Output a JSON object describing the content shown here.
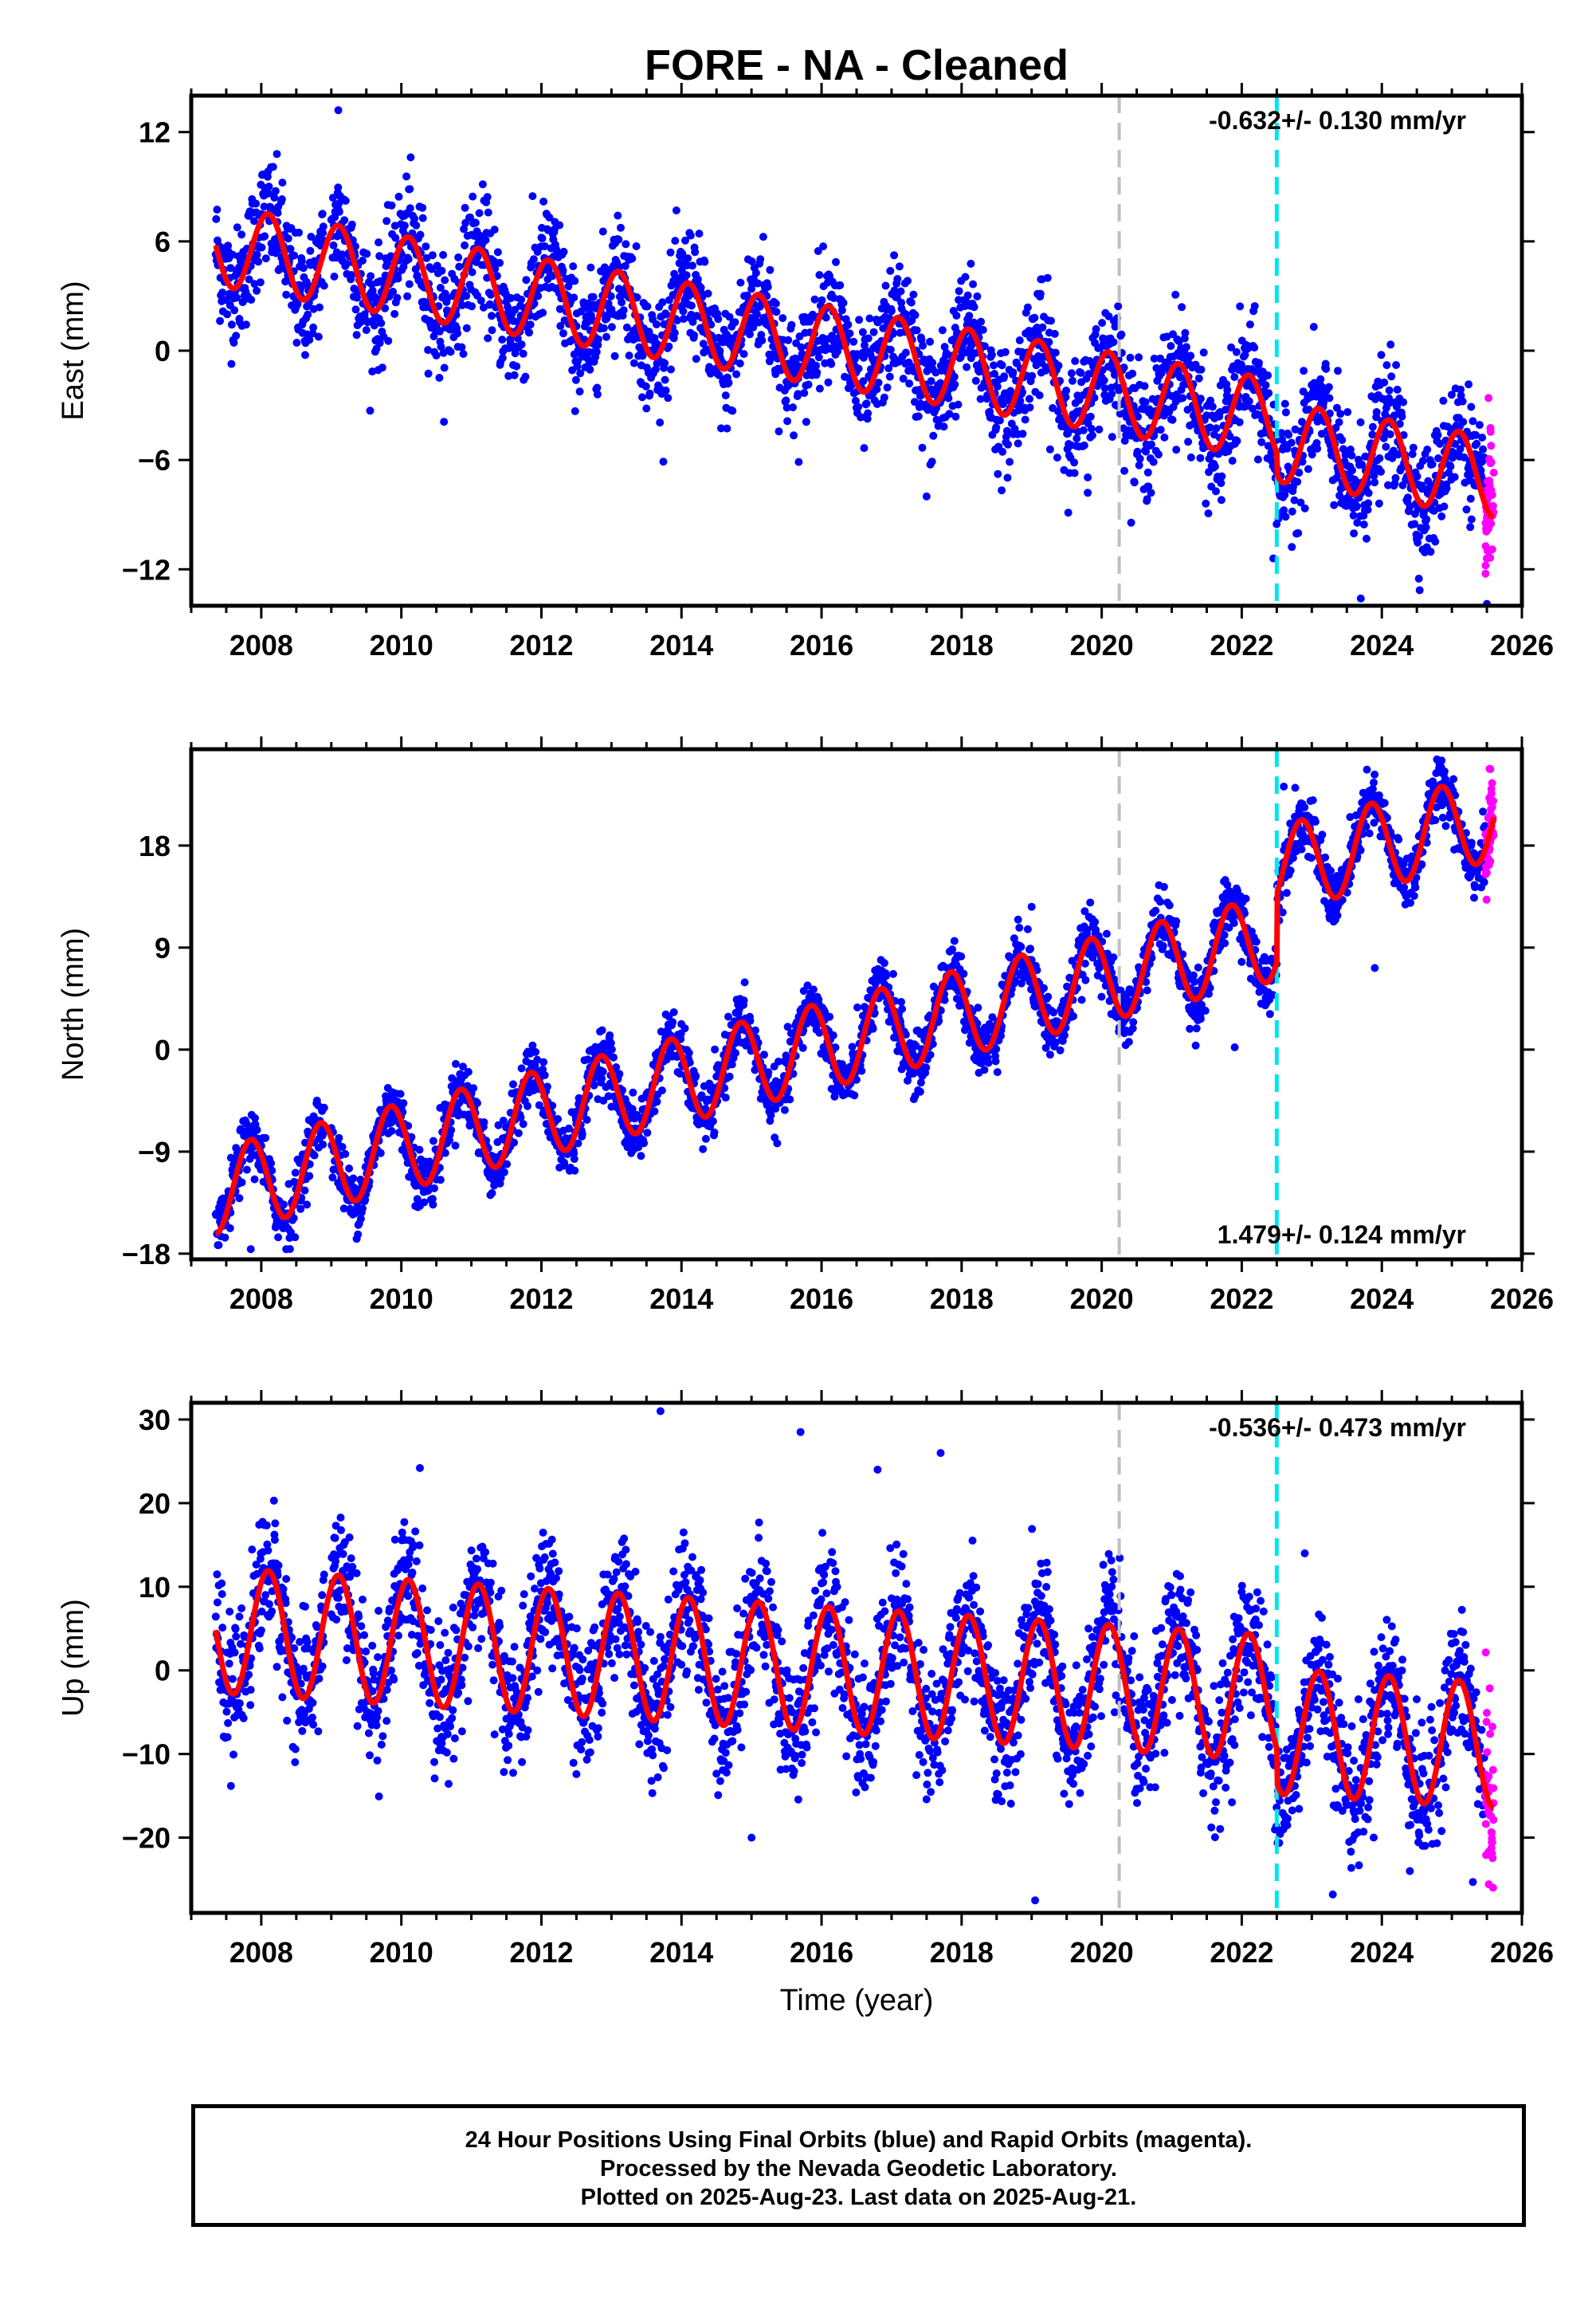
{
  "chart_data": {
    "type": "scatter",
    "title": "FORE  - NA - Cleaned",
    "xlabel": "Time (year)",
    "xlim": [
      2007.0,
      2026.0
    ],
    "x_ticks": [
      2008,
      2010,
      2012,
      2014,
      2016,
      2018,
      2020,
      2022,
      2024,
      2026
    ],
    "x_tick_labels": [
      "2008",
      "2010",
      "2012",
      "2014",
      "2016",
      "2018",
      "2020",
      "2022",
      "2024",
      "2026"
    ],
    "vertical_lines": [
      {
        "x": 2020.25,
        "color": "#c0c0c0",
        "style": "dashed"
      },
      {
        "x": 2022.5,
        "color": "#00e5ee",
        "style": "dashed"
      }
    ],
    "colors": {
      "final_orbits": "#0000ff",
      "rapid_orbits": "#ff00ff",
      "model": "#ff0000"
    },
    "panels": [
      {
        "name": "east",
        "ylabel": "East (mm)",
        "ylim": [
          -14.0,
          14.0
        ],
        "y_ticks": [
          -12,
          -6,
          0,
          6,
          12
        ],
        "y_tick_labels": [
          "−12",
          "−6",
          "0",
          "6",
          "12"
        ],
        "rate_label": "-0.632+/- 0.130 mm/yr",
        "rate_label_position": "top-right",
        "data_start": 2007.35,
        "data_end": 2025.6,
        "rapid_start": 2025.48,
        "model": {
          "intercept_at_2007": 6.0,
          "rate": -0.632,
          "amplitude": 2.2,
          "phase_cycles": 0.15,
          "offsets": [
            {
              "x": 2022.5,
              "size": -1.2
            }
          ]
        },
        "noise_sd": 1.6,
        "outliers": [
          [
            2009.1,
            13.2
          ],
          [
            2017.5,
            -8.0
          ],
          [
            2019.8,
            -7.8
          ],
          [
            2022.45,
            -11.4
          ],
          [
            2023.7,
            -13.6
          ],
          [
            2025.5,
            -13.9
          ]
        ]
      },
      {
        "name": "north",
        "ylabel": "North (mm)",
        "ylim": [
          -18.5,
          26.5
        ],
        "y_ticks": [
          -18,
          -9,
          0,
          9,
          18
        ],
        "y_tick_labels": [
          "−18",
          "−9",
          "0",
          "9",
          "18"
        ],
        "rate_label": "1.479+/- 0.124 mm/yr",
        "rate_label_position": "bottom-right",
        "data_start": 2007.35,
        "data_end": 2025.6,
        "rapid_start": 2025.48,
        "model": {
          "intercept_at_2007": -13.0,
          "rate": 1.479,
          "amplitude": 3.8,
          "phase_cycles": 0.4,
          "offsets": [
            {
              "x": 2022.5,
              "size": 6.0
            }
          ]
        },
        "noise_sd": 1.3,
        "outliers": [
          [
            2007.85,
            -17.6
          ],
          [
            2019.0,
            12.6
          ],
          [
            2022.6,
            23.2
          ],
          [
            2023.9,
            7.2
          ],
          [
            2021.9,
            0.2
          ]
        ]
      },
      {
        "name": "up",
        "ylabel": "Up (mm)",
        "ylim": [
          -29.0,
          32.0
        ],
        "y_ticks": [
          -20,
          -10,
          0,
          10,
          20,
          30
        ],
        "y_tick_labels": [
          "−20",
          "−10",
          "0",
          "10",
          "20",
          "30"
        ],
        "rate_label": "-0.536+/- 0.473 mm/yr",
        "rate_label_position": "top-right",
        "data_start": 2007.35,
        "data_end": 2025.6,
        "rapid_start": 2025.48,
        "model": {
          "intercept_at_2007": 5.0,
          "rate": -0.536,
          "amplitude": 7.5,
          "phase_cycles": 0.15,
          "offsets": [
            {
              "x": 2022.5,
              "size": -4.0
            }
          ]
        },
        "noise_sd": 4.0,
        "outliers": [
          [
            2013.7,
            31.0
          ],
          [
            2015.7,
            28.5
          ],
          [
            2017.7,
            26.0
          ],
          [
            2016.8,
            24.0
          ],
          [
            2019.05,
            -27.5
          ],
          [
            2015.0,
            -20.0
          ],
          [
            2023.3,
            -26.8
          ],
          [
            2025.3,
            -25.3
          ],
          [
            2024.4,
            -24.0
          ],
          [
            2022.9,
            14.0
          ]
        ]
      }
    ]
  },
  "footer": {
    "line1": "24 Hour Positions Using Final Orbits (blue) and Rapid Orbits (magenta).",
    "line2": "Processed by the Nevada Geodetic Laboratory.",
    "line3": "Plotted on 2025-Aug-23. Last data on 2025-Aug-21."
  }
}
